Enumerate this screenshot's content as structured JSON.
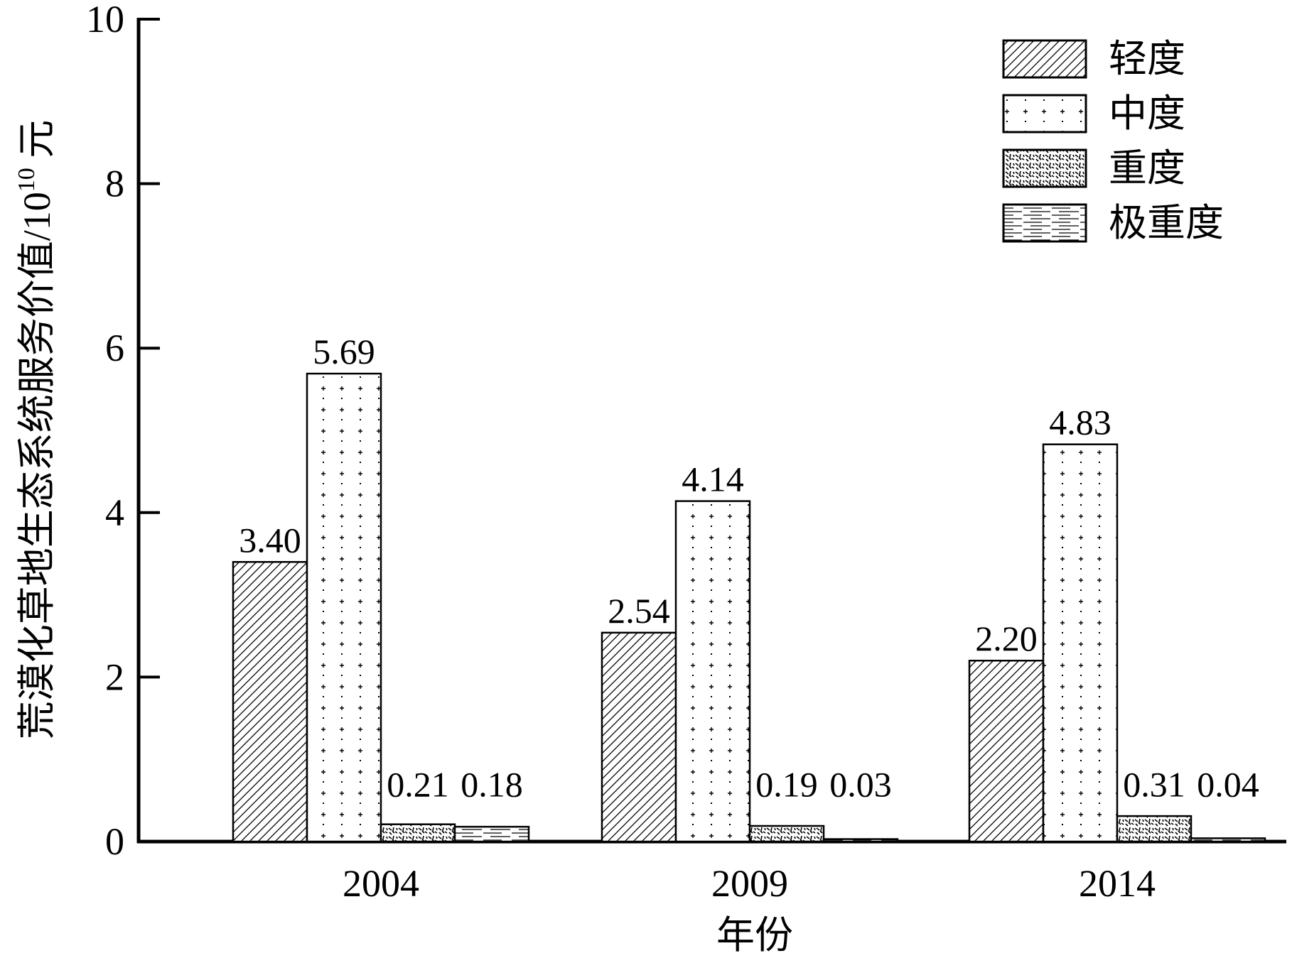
{
  "chart_data": {
    "type": "bar",
    "title": "",
    "xlabel": "年份",
    "ylabel_main": "荒漠化草地生态系统服务价值/10",
    "ylabel_exp": "10",
    "ylabel_unit": " 元",
    "categories": [
      "2004",
      "2009",
      "2014"
    ],
    "ylim": [
      0,
      10
    ],
    "yticks": [
      "0",
      "2",
      "4",
      "6",
      "8",
      "10"
    ],
    "grid": false,
    "legend_position": "top-right",
    "series": [
      {
        "name": "轻度",
        "values": [
          3.4,
          2.54,
          2.2
        ],
        "labels": [
          "3.40",
          "2.54",
          "2.20"
        ],
        "pattern": "diagonal-hatch"
      },
      {
        "name": "中度",
        "values": [
          5.69,
          4.14,
          4.83
        ],
        "labels": [
          "5.69",
          "4.14",
          "4.83"
        ],
        "pattern": "sparse-plus-dots"
      },
      {
        "name": "重度",
        "values": [
          0.21,
          0.19,
          0.31
        ],
        "labels": [
          "0.21",
          "0.19",
          "0.31"
        ],
        "pattern": "dense-dashes"
      },
      {
        "name": "极重度",
        "values": [
          0.18,
          0.03,
          0.04
        ],
        "labels": [
          "0.18",
          "0.03",
          "0.04"
        ],
        "pattern": "horizontal-lines"
      }
    ],
    "colors": {
      "bar_stroke": "#000000",
      "bar_fill": "#ffffff",
      "axis": "#000000"
    }
  }
}
